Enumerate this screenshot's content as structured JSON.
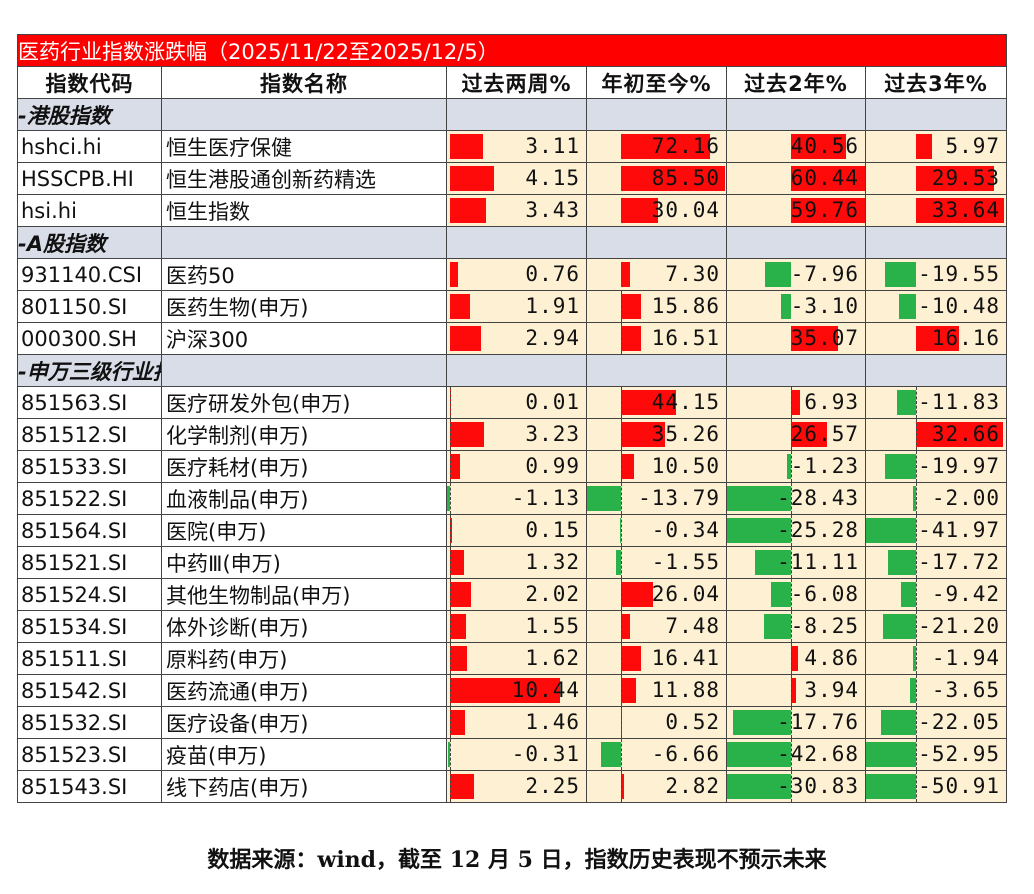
{
  "title": "医药行业指数涨跌幅（2025/11/22至2025/12/5）",
  "headers": [
    "指数代码",
    "指数名称",
    "过去两周%",
    "年初至今%",
    "过去2年%",
    "过去3年%"
  ],
  "colors": {
    "title_bg": "#ff0000",
    "section_bg": "#d9dde8",
    "value_bg": "#fdf0d3",
    "positive": "#ff0a0a",
    "negative": "#2ab24a"
  },
  "sections": [
    {
      "label": "-港股指数",
      "rows": [
        {
          "code": "hshci.hi",
          "name": "恒生医疗保健",
          "values": [
            "3.11",
            "72.16",
            "40.56",
            "5.97"
          ]
        },
        {
          "code": "HSSCPB.HI",
          "name": "恒生港股通创新药精选",
          "values": [
            "4.15",
            "85.50",
            "60.44",
            "29.53"
          ]
        },
        {
          "code": "hsi.hi",
          "name": "恒生指数",
          "values": [
            "3.43",
            "30.04",
            "59.76",
            "33.64"
          ]
        }
      ]
    },
    {
      "label": "-A股指数",
      "rows": [
        {
          "code": "931140.CSI",
          "name": "医药50",
          "values": [
            "0.76",
            "7.30",
            "-7.96",
            "-19.55"
          ]
        },
        {
          "code": "801150.SI",
          "name": "医药生物(申万)",
          "values": [
            "1.91",
            "15.86",
            "-3.10",
            "-10.48"
          ]
        },
        {
          "code": "000300.SH",
          "name": "沪深300",
          "values": [
            "2.94",
            "16.51",
            "35.07",
            "16.16"
          ]
        }
      ]
    },
    {
      "label": "-申万三级行业指数",
      "rows": [
        {
          "code": "851563.SI",
          "name": "医疗研发外包(申万)",
          "values": [
            "0.01",
            "44.15",
            "6.93",
            "-11.83"
          ]
        },
        {
          "code": "851512.SI",
          "name": "化学制剂(申万)",
          "values": [
            "3.23",
            "35.26",
            "26.57",
            "32.66"
          ]
        },
        {
          "code": "851533.SI",
          "name": "医疗耗材(申万)",
          "values": [
            "0.99",
            "10.50",
            "-1.23",
            "-19.97"
          ]
        },
        {
          "code": "851522.SI",
          "name": "血液制品(申万)",
          "values": [
            "-1.13",
            "-13.79",
            "-28.43",
            "-2.00"
          ]
        },
        {
          "code": "851564.SI",
          "name": "医院(申万)",
          "values": [
            "0.15",
            "-0.34",
            "-25.28",
            "-41.97"
          ]
        },
        {
          "code": "851521.SI",
          "name": "中药Ⅲ(申万)",
          "values": [
            "1.32",
            "-1.55",
            "-11.11",
            "-17.72"
          ]
        },
        {
          "code": "851524.SI",
          "name": "其他生物制品(申万)",
          "values": [
            "2.02",
            "26.04",
            "-6.08",
            "-9.42"
          ]
        },
        {
          "code": "851534.SI",
          "name": "体外诊断(申万)",
          "values": [
            "1.55",
            "7.48",
            "-8.25",
            "-21.20"
          ]
        },
        {
          "code": "851511.SI",
          "name": "原料药(申万)",
          "values": [
            "1.62",
            "16.41",
            "4.86",
            "-1.94"
          ]
        },
        {
          "code": "851542.SI",
          "name": "医药流通(申万)",
          "values": [
            "10.44",
            "11.88",
            "3.94",
            "-3.65"
          ]
        },
        {
          "code": "851532.SI",
          "name": "医疗设备(申万)",
          "values": [
            "1.46",
            "0.52",
            "-17.76",
            "-22.05"
          ]
        },
        {
          "code": "851523.SI",
          "name": "疫苗(申万)",
          "values": [
            "-0.31",
            "-6.66",
            "-42.68",
            "-52.95"
          ]
        },
        {
          "code": "851543.SI",
          "name": "线下药店(申万)",
          "values": [
            "2.25",
            "2.82",
            "-30.83",
            "-50.91"
          ]
        }
      ]
    }
  ],
  "source": "数据来源：wind，截至 12 月 5 日，指数历史表现不预示未来"
}
